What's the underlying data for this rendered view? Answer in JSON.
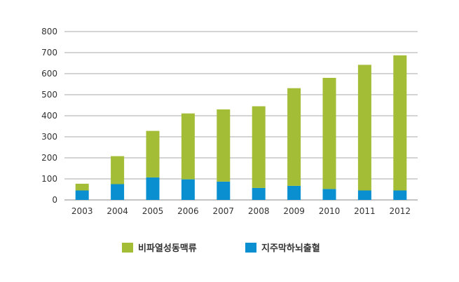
{
  "chart_data": {
    "type": "bar",
    "stacked": true,
    "title": "",
    "xlabel": "",
    "ylabel": "",
    "categories": [
      "2003",
      "2004",
      "2005",
      "2006",
      "2007",
      "2008",
      "2009",
      "2010",
      "2011",
      "2012"
    ],
    "series": [
      {
        "name": "지주막하뇌출혈",
        "color": "#0a8fd1",
        "values": [
          45,
          75,
          107,
          98,
          87,
          57,
          67,
          52,
          45,
          45
        ]
      },
      {
        "name": "비파열성동맥류",
        "color": "#a3bd37",
        "values": [
          32,
          133,
          221,
          313,
          343,
          388,
          464,
          528,
          597,
          642
        ]
      }
    ],
    "ylim": [
      0,
      800
    ],
    "yticks": [
      0,
      100,
      200,
      300,
      400,
      500,
      600,
      700,
      800
    ],
    "grid": true,
    "legend": {
      "placement": "bottom",
      "order": [
        "비파열성동맥류",
        "지주막하뇌출혈"
      ]
    }
  }
}
